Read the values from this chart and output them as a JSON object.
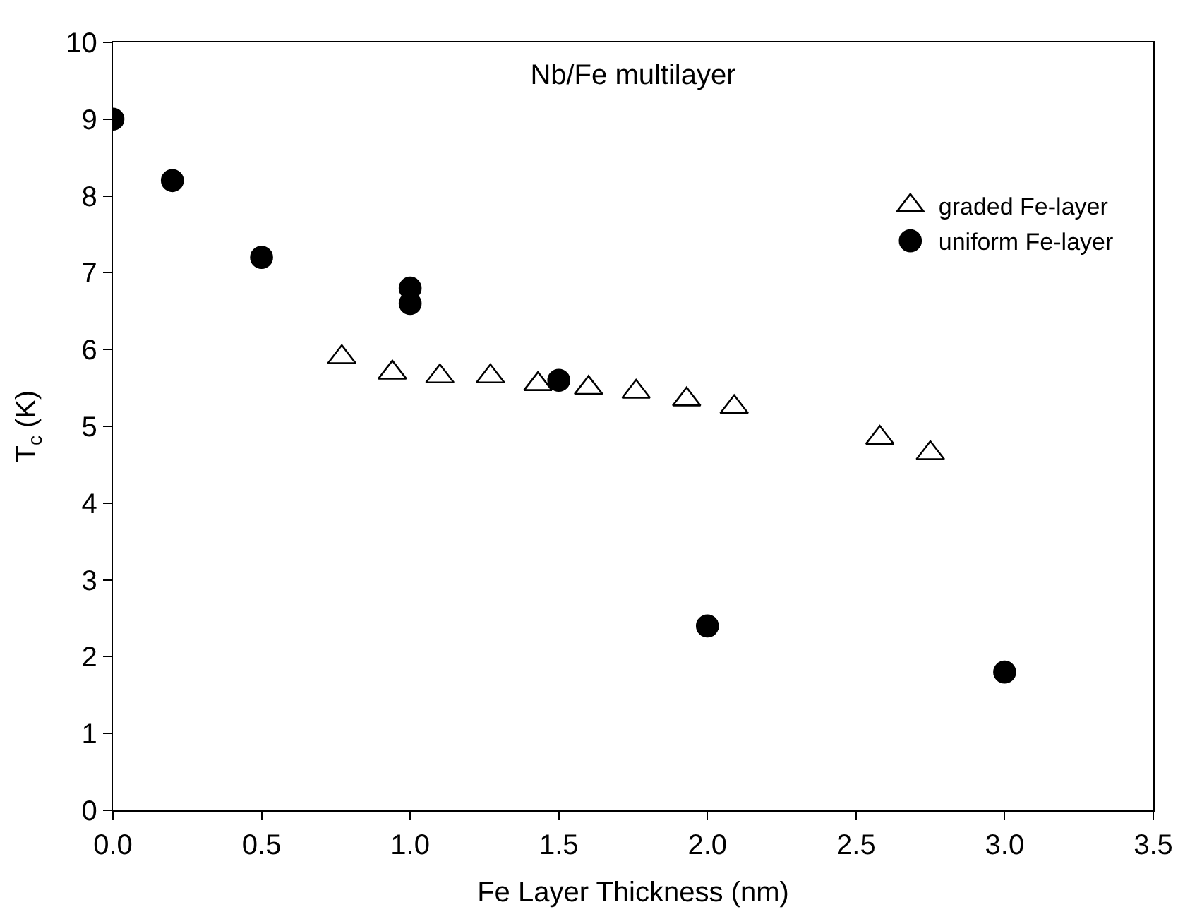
{
  "chart_data": {
    "type": "scatter",
    "title": "Nb/Fe multilayer",
    "xlabel": "Fe Layer Thickness (nm)",
    "ylabel": "T$_{c}$ (K)",
    "series": [
      {
        "name": "graded Fe-layer",
        "color": "#000000",
        "marker": "triangle-open",
        "x": [
          0.77,
          0.94,
          1.1,
          1.27,
          1.43,
          1.6,
          1.76,
          1.93,
          2.09,
          2.58,
          2.75
        ],
        "values": [
          5.9,
          5.7,
          5.65,
          5.65,
          5.55,
          5.5,
          5.45,
          5.35,
          5.25,
          4.85,
          4.65
        ]
      },
      {
        "name": "uniform Fe-layer",
        "color": "#000000",
        "marker": "circle",
        "x": [
          0.0,
          0.2,
          0.5,
          1.0,
          1.0,
          1.5,
          2.0,
          3.0
        ],
        "values": [
          9.0,
          8.2,
          7.2,
          6.8,
          6.6,
          5.6,
          2.4,
          1.8
        ]
      }
    ],
    "xlim": [
      0,
      3.5
    ],
    "xticks": [
      {
        "value": 0,
        "label": "0.0"
      },
      0.5,
      {
        "value": 1,
        "label": "1.0"
      },
      1.5,
      {
        "value": 2,
        "label": "2.0"
      },
      2.5,
      {
        "value": 3,
        "label": "3.0"
      },
      3.5
    ],
    "ylim": [
      0,
      10
    ],
    "yticks": [
      0,
      1,
      2,
      3,
      4,
      5,
      6,
      7,
      8,
      9,
      10
    ],
    "legend": "top right"
  }
}
